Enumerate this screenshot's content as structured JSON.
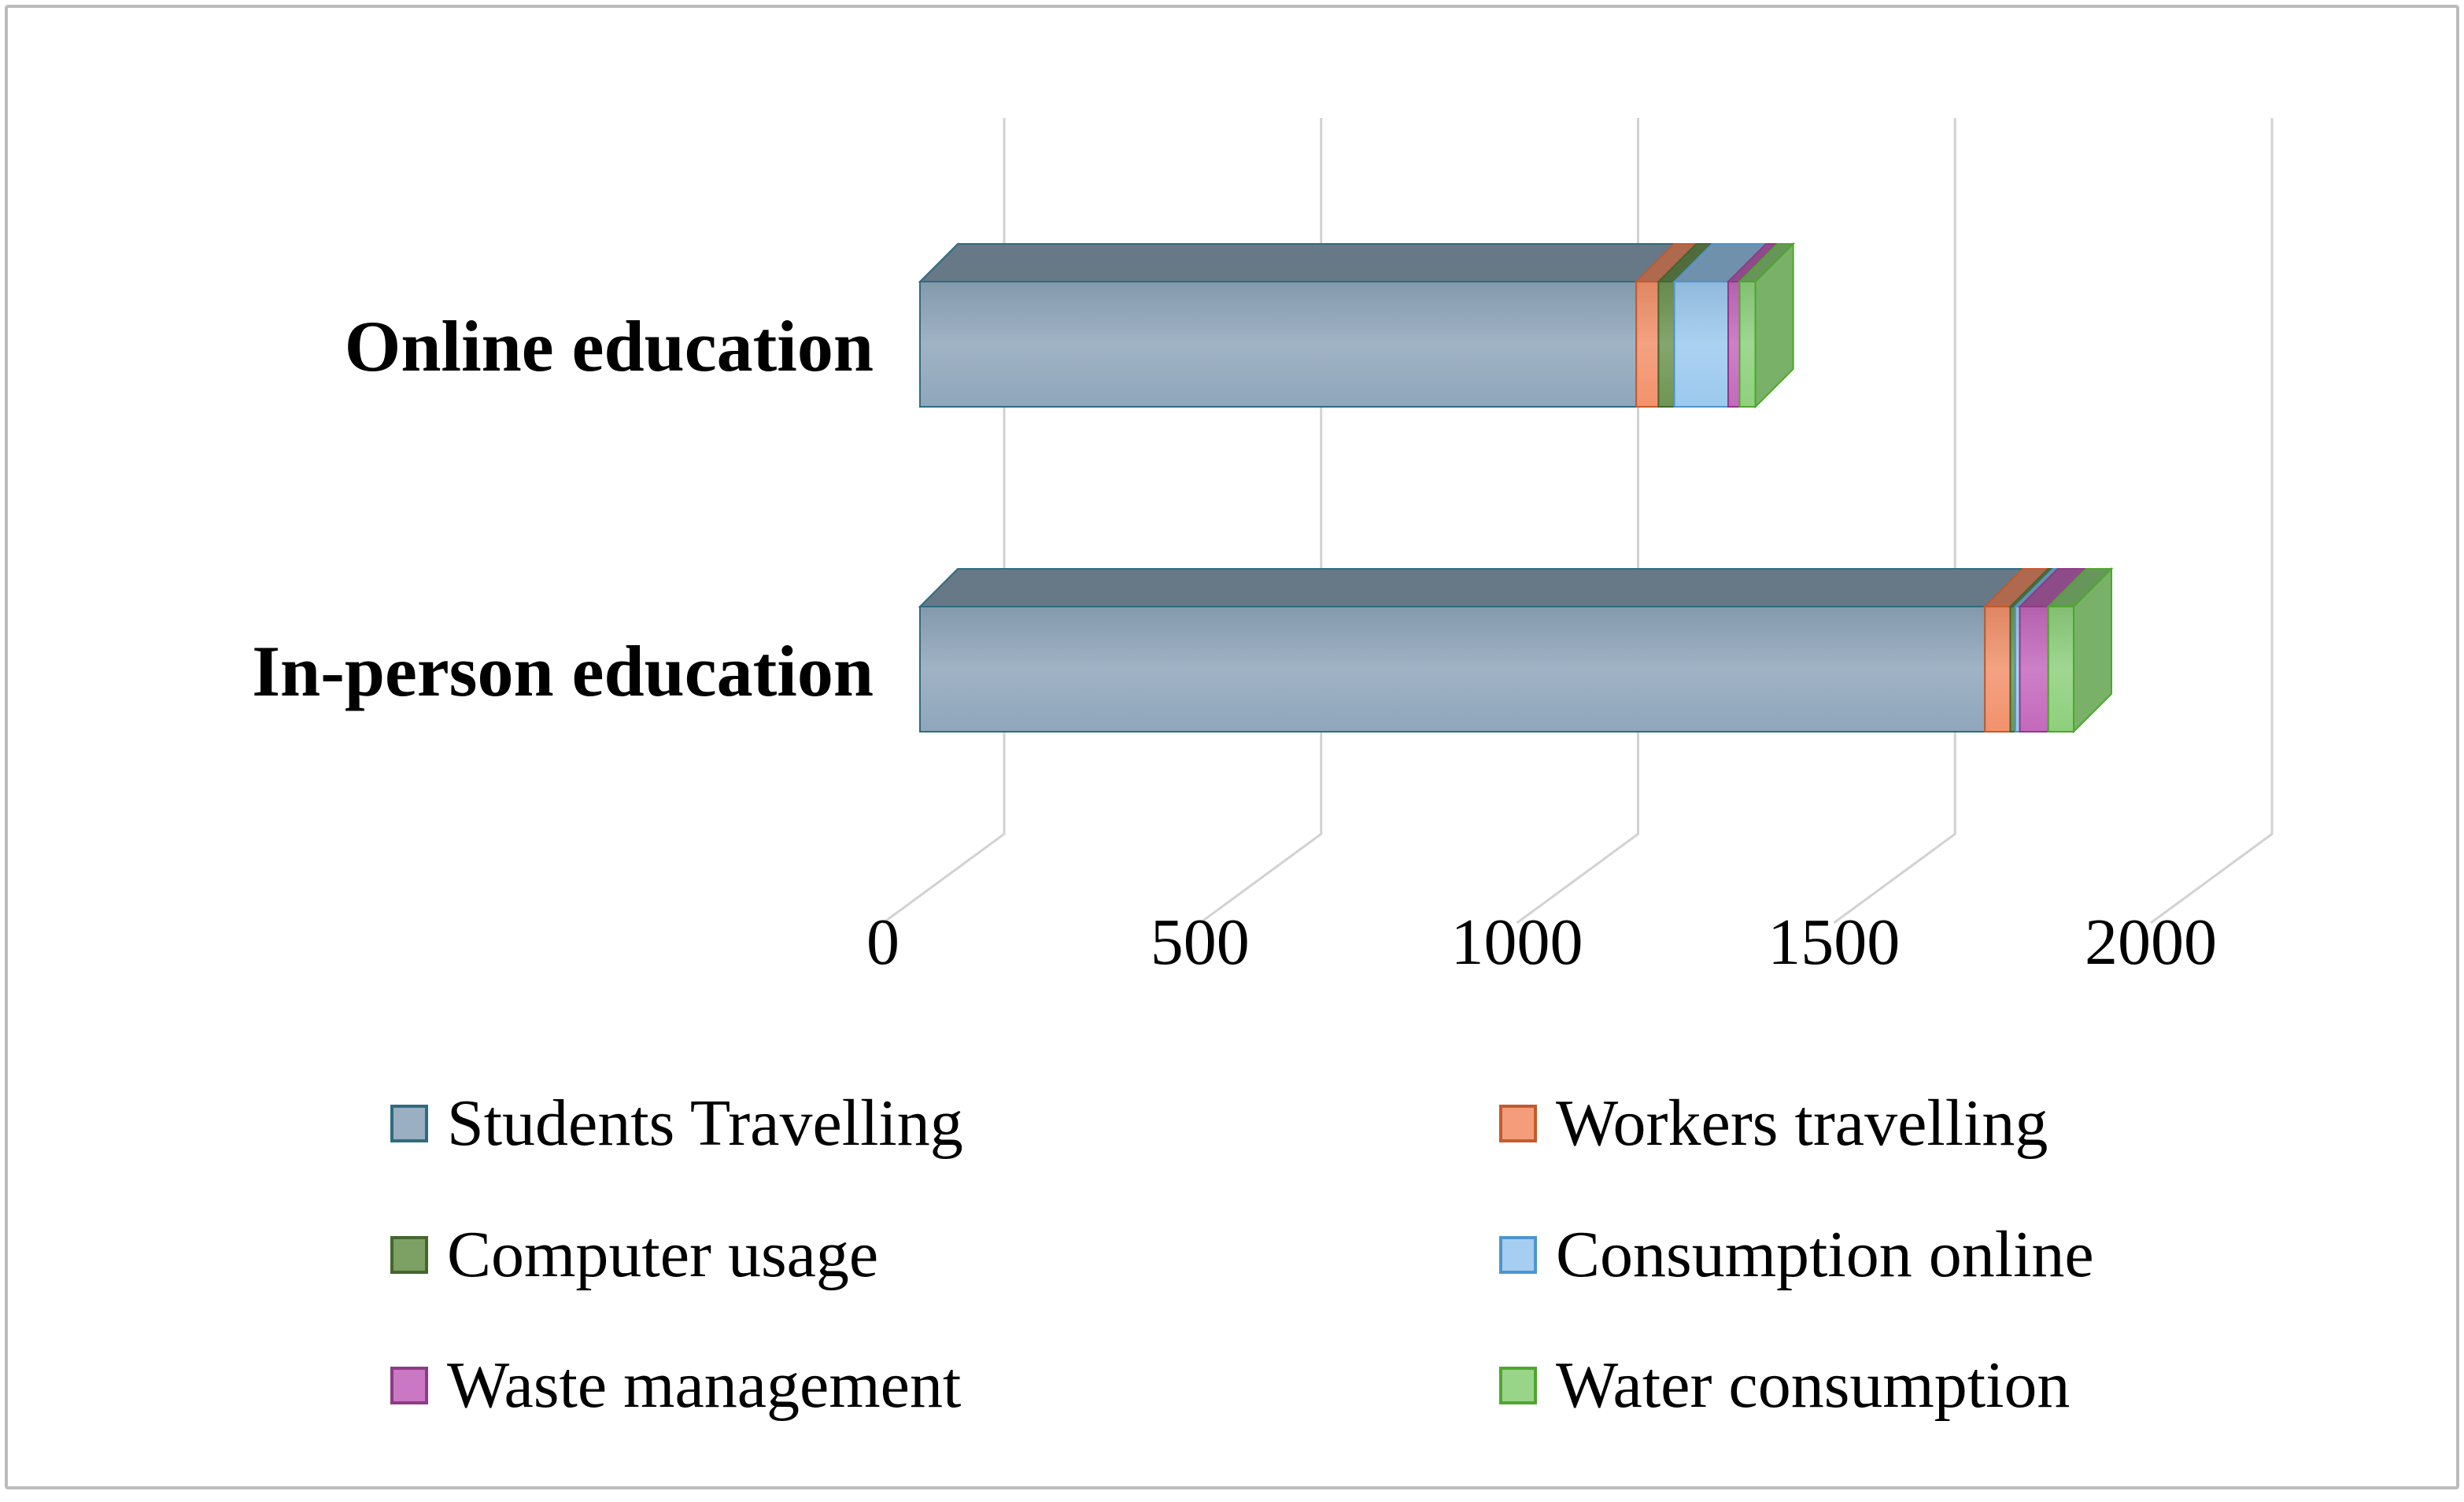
{
  "figure": {
    "background": "#ffffff",
    "border_color": "#bcbcbc"
  },
  "chart_data": {
    "type": "bar",
    "variant": "3d-horizontal-stacked",
    "title": "",
    "xlabel": "",
    "ylabel": "",
    "categories": [
      "Online education",
      "In-person education"
    ],
    "series": [
      {
        "name": "Students Travelling",
        "color": "#8FA6BB",
        "border": "#2E6C80",
        "values": [
          1130,
          1680
        ]
      },
      {
        "name": "Workers travelling",
        "color": "#F2926C",
        "border": "#C55A2B",
        "values": [
          35,
          40
        ]
      },
      {
        "name": "Computer usage",
        "color": "#6F9553",
        "border": "#45662E",
        "values": [
          25,
          8
        ]
      },
      {
        "name": "Consumption online",
        "color": "#9CC9EE",
        "border": "#4E95D0",
        "values": [
          85,
          7
        ]
      },
      {
        "name": "Waste management",
        "color": "#C469BC",
        "border": "#8E3A88",
        "values": [
          18,
          45
        ]
      },
      {
        "name": "Water consumption",
        "color": "#8ED07C",
        "border": "#4EA72E",
        "values": [
          25,
          40
        ]
      }
    ],
    "x_ticks": [
      0,
      500,
      1000,
      1500,
      2000
    ],
    "xlim": [
      0,
      2000
    ],
    "grid": true,
    "gridline_color": "#D2D2D2",
    "axis_text_color": "#000000",
    "legend_position": "bottom",
    "legend_columns": 2
  }
}
